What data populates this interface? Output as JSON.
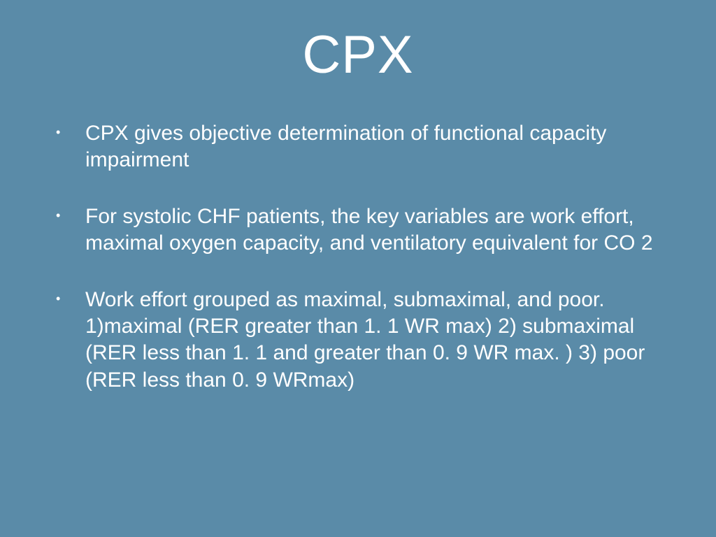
{
  "slide": {
    "title": "CPX",
    "bullets": [
      "CPX gives objective determination of functional capacity impairment",
      "For systolic CHF patients, the key variables are work effort, maximal oxygen capacity, and ventilatory equivalent for CO 2",
      "Work effort grouped as maximal, submaximal, and poor. 1)maximal (RER greater than 1. 1 WR max) 2) submaximal (RER less than 1. 1 and greater than 0. 9 WR max. )   3) poor (RER less than 0. 9 WRmax)"
    ],
    "background_color": "#5a8ba8",
    "text_color": "#ffffff",
    "title_fontsize": 76,
    "bullet_fontsize": 30
  }
}
